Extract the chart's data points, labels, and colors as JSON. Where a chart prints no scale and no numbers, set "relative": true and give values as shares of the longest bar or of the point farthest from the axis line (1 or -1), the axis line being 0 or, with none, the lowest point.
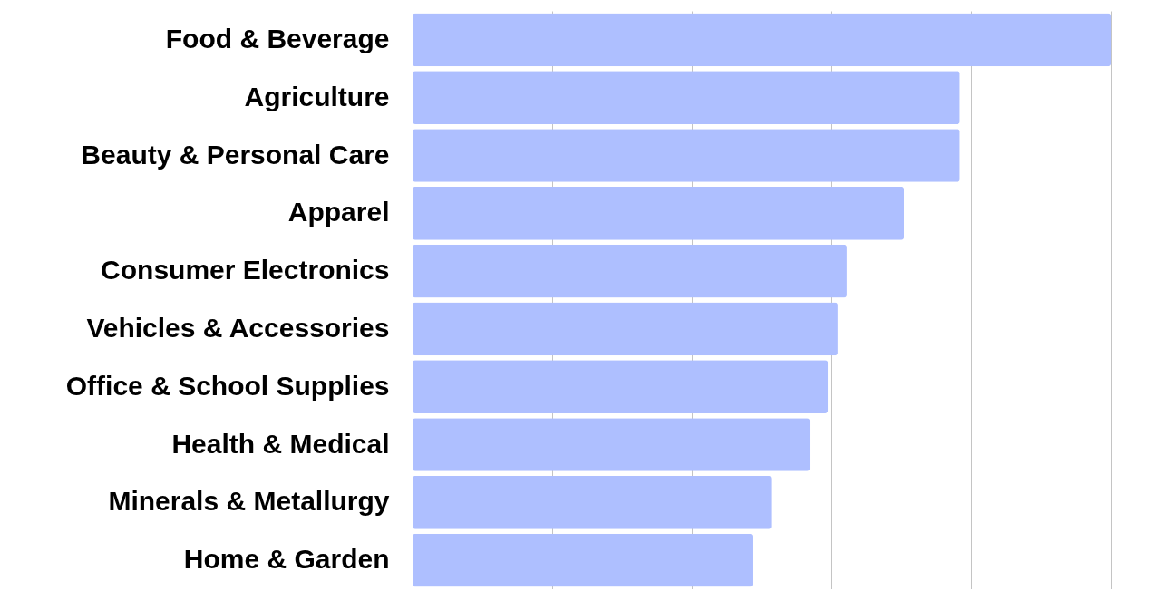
{
  "chart_data": {
    "type": "bar",
    "orientation": "horizontal",
    "relative": true,
    "grid": "x",
    "categories": [
      "Food & Beverage",
      "Agriculture",
      "Beauty & Personal Care",
      "Apparel",
      "Consumer Electronics",
      "Vehicles & Accessories",
      "Office & School Supplies",
      "Health & Medical",
      "Minerals & Metallurgy",
      "Home & Garden"
    ],
    "values": [
      1,
      0.784,
      0.784,
      0.704,
      0.622,
      0.609,
      0.595,
      0.569,
      0.514,
      0.487
    ],
    "color": "#aebfff"
  }
}
